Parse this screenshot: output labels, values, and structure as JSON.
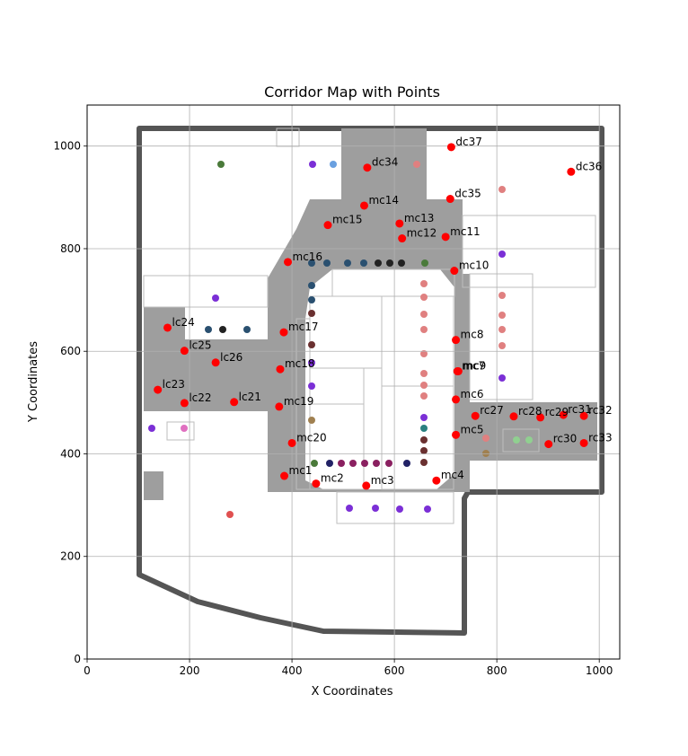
{
  "chart_data": {
    "type": "scatter",
    "title": "Corridor Map with Points",
    "xlabel": "X Coordinates",
    "ylabel": "Y Coordinates",
    "xlim": [
      0,
      1040
    ],
    "ylim": [
      0,
      1080
    ],
    "xticks": [
      0,
      200,
      400,
      600,
      800,
      1000
    ],
    "yticks": [
      0,
      200,
      400,
      600,
      800,
      1000
    ],
    "grid": true,
    "background": "floor plan image of corridor layout",
    "colors": {
      "point": "#ff0000",
      "corridor": "#9e9e9e",
      "wall": "#555555",
      "room_outline": "#bdbdbd"
    },
    "points": [
      {
        "label": "mc1",
        "x": 385,
        "y": 357
      },
      {
        "label": "mc2",
        "x": 447,
        "y": 342
      },
      {
        "label": "mc3",
        "x": 545,
        "y": 338
      },
      {
        "label": "mc4",
        "x": 682,
        "y": 348
      },
      {
        "label": "mc5",
        "x": 720,
        "y": 437
      },
      {
        "label": "mc6",
        "x": 720,
        "y": 506
      },
      {
        "label": "mc7",
        "x": 723,
        "y": 561
      },
      {
        "label": "mc9",
        "x": 725,
        "y": 561
      },
      {
        "label": "mc8",
        "x": 720,
        "y": 622
      },
      {
        "label": "mc10",
        "x": 717,
        "y": 757
      },
      {
        "label": "mc11",
        "x": 700,
        "y": 823
      },
      {
        "label": "mc12",
        "x": 615,
        "y": 820
      },
      {
        "label": "mc13",
        "x": 610,
        "y": 849
      },
      {
        "label": "mc14",
        "x": 541,
        "y": 884
      },
      {
        "label": "mc15",
        "x": 470,
        "y": 846
      },
      {
        "label": "mc16",
        "x": 392,
        "y": 774
      },
      {
        "label": "mc17",
        "x": 384,
        "y": 637
      },
      {
        "label": "mc18",
        "x": 377,
        "y": 565
      },
      {
        "label": "mc19",
        "x": 375,
        "y": 492
      },
      {
        "label": "mc20",
        "x": 400,
        "y": 421
      },
      {
        "label": "lc21",
        "x": 287,
        "y": 501
      },
      {
        "label": "lc22",
        "x": 190,
        "y": 499
      },
      {
        "label": "lc23",
        "x": 138,
        "y": 525
      },
      {
        "label": "lc24",
        "x": 157,
        "y": 646
      },
      {
        "label": "lc25",
        "x": 190,
        "y": 601
      },
      {
        "label": "lc26",
        "x": 251,
        "y": 578
      },
      {
        "label": "rc27",
        "x": 758,
        "y": 474
      },
      {
        "label": "rc28",
        "x": 833,
        "y": 473
      },
      {
        "label": "rc29",
        "x": 885,
        "y": 471
      },
      {
        "label": "rc30",
        "x": 901,
        "y": 419
      },
      {
        "label": "rc31",
        "x": 930,
        "y": 476
      },
      {
        "label": "rc32",
        "x": 970,
        "y": 474
      },
      {
        "label": "rc33",
        "x": 970,
        "y": 421
      },
      {
        "label": "dc34",
        "x": 547,
        "y": 958
      },
      {
        "label": "dc35",
        "x": 709,
        "y": 897
      },
      {
        "label": "dc36",
        "x": 945,
        "y": 950
      },
      {
        "label": "dc37",
        "x": 711,
        "y": 998
      }
    ]
  }
}
